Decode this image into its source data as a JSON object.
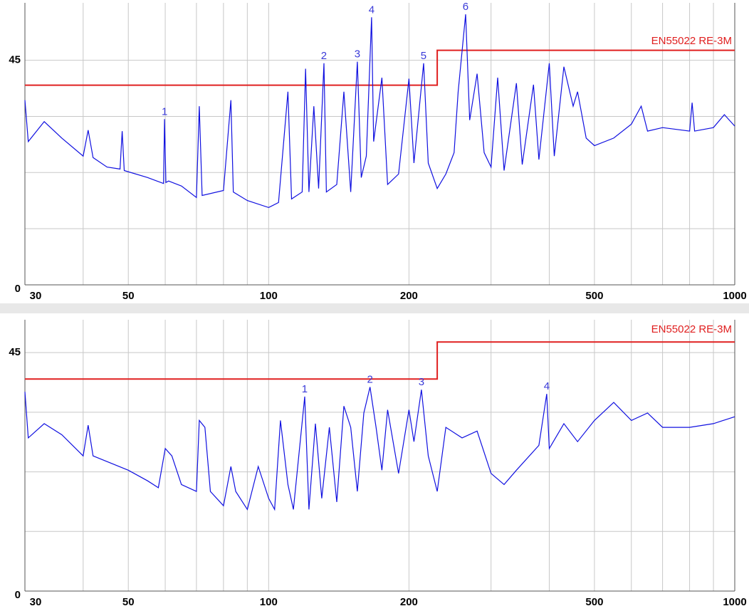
{
  "chart_data": [
    {
      "type": "line",
      "x_scale": "log",
      "xlim": [
        30,
        1000
      ],
      "ylim": [
        0,
        56.5
      ],
      "xticks": [
        30,
        50,
        100,
        200,
        500,
        1000
      ],
      "minor_xticks": [
        40,
        60,
        70,
        80,
        90,
        300,
        400,
        600,
        700,
        800,
        900
      ],
      "yticks": [
        0,
        45
      ],
      "minor_yticks": [
        11.25,
        22.5,
        33.75
      ],
      "grid": true,
      "series": [
        {
          "name": "EN55022 RE-3M",
          "color": "#e02020",
          "x": [
            30,
            230,
            230,
            1000
          ],
          "values": [
            40,
            40,
            47,
            47
          ]
        },
        {
          "color": "#1010e0",
          "x": [
            30,
            30.5,
            33,
            36,
            40,
            41,
            42,
            45,
            48,
            48.5,
            49,
            55,
            59.5,
            59.8,
            60.2,
            61,
            65,
            70,
            71,
            72,
            80,
            83,
            84,
            90,
            100,
            105,
            110,
            112,
            118,
            120,
            122,
            125,
            128,
            131.4,
            133,
            140,
            145,
            150,
            155,
            158,
            162,
            166.3,
            168,
            175,
            180,
            190,
            200,
            205,
            215,
            220,
            230,
            240,
            250,
            255,
            264.6,
            270,
            280,
            290,
            300,
            310,
            320,
            340,
            350,
            370,
            380,
            400,
            410,
            430,
            450,
            460,
            480,
            500,
            550,
            600,
            630,
            650,
            700,
            800,
            810,
            820,
            900,
            950,
            1000
          ],
          "values": [
            37,
            28.7,
            32.7,
            29.4,
            25.8,
            31,
            25.5,
            23.6,
            23.2,
            30.8,
            22.9,
            21.5,
            20.3,
            33.2,
            20.5,
            20.8,
            19.8,
            17.5,
            35.8,
            17.9,
            18.9,
            37,
            18.6,
            16.9,
            15.5,
            16.5,
            38.7,
            17.2,
            18.6,
            43.3,
            18.6,
            35.8,
            19.3,
            44.4,
            18.6,
            20.1,
            38.7,
            18.6,
            44.7,
            21.5,
            25.8,
            53.6,
            28.7,
            41.5,
            20.1,
            22.2,
            41.3,
            24.4,
            44.4,
            24.4,
            19.3,
            22.2,
            26.5,
            38.7,
            54.2,
            33,
            42.3,
            26.5,
            23.6,
            41.5,
            22.9,
            40.4,
            24.1,
            40.1,
            25.1,
            44.4,
            25.8,
            43.7,
            35.8,
            38.7,
            29.4,
            27.9,
            29.4,
            32.2,
            35.8,
            30.8,
            31.5,
            30.8,
            36.5,
            30.8,
            31.5,
            34.1,
            31.8
          ]
        }
      ],
      "markers": [
        {
          "label": "1",
          "x": 59.8,
          "value": 33.2
        },
        {
          "label": "2",
          "x": 131.4,
          "value": 44.4
        },
        {
          "label": "3",
          "x": 155,
          "value": 44.7
        },
        {
          "label": "4",
          "x": 166.3,
          "value": 53.6
        },
        {
          "label": "5",
          "x": 215,
          "value": 44.4
        },
        {
          "label": "6",
          "x": 264.6,
          "value": 54.2
        }
      ]
    },
    {
      "type": "line",
      "x_scale": "log",
      "xlim": [
        30,
        1000
      ],
      "ylim": [
        0,
        51.2
      ],
      "xticks": [
        30,
        50,
        100,
        200,
        500,
        1000
      ],
      "minor_xticks": [
        40,
        60,
        70,
        80,
        90,
        300,
        400,
        600,
        700,
        800,
        900
      ],
      "yticks": [
        0,
        45
      ],
      "minor_yticks": [
        11.25,
        22.5,
        33.75
      ],
      "grid": true,
      "series": [
        {
          "name": "EN55022 RE-3M",
          "color": "#e02020",
          "x": [
            30,
            230,
            230,
            1000
          ],
          "values": [
            40,
            40,
            47,
            47
          ]
        },
        {
          "color": "#1010e0",
          "x": [
            30,
            30.5,
            33,
            36,
            40,
            41,
            42,
            50,
            55,
            58,
            60,
            62,
            65,
            70,
            71,
            73,
            75,
            80,
            83,
            85,
            90,
            95,
            100,
            103,
            106,
            110,
            113,
            119.5,
            122,
            126,
            130,
            135,
            140,
            145,
            150,
            155,
            160,
            165,
            170,
            175,
            180,
            190,
            200,
            205,
            212.7,
            220,
            230,
            240,
            260,
            280,
            300,
            320,
            340,
            380,
            395,
            400,
            430,
            460,
            500,
            550,
            600,
            650,
            700,
            800,
            900,
            1000
          ],
          "values": [
            37.6,
            28.9,
            31.6,
            29.5,
            25.5,
            31.3,
            25.5,
            22.8,
            20.8,
            19.5,
            26.9,
            25.5,
            20.1,
            18.8,
            32.2,
            30.9,
            18.8,
            16.1,
            23.5,
            18.8,
            15.4,
            23.5,
            17.5,
            15.4,
            32.2,
            20.1,
            15.4,
            36.7,
            15.4,
            31.6,
            17.5,
            30.9,
            16.8,
            34.9,
            30.9,
            18.8,
            33.6,
            38.5,
            30.9,
            22.8,
            34.2,
            22.2,
            34.2,
            28.2,
            38,
            25.5,
            18.8,
            30.9,
            28.9,
            30.2,
            22.2,
            20.1,
            22.8,
            27.5,
            37.2,
            26.9,
            31.6,
            28.2,
            32.2,
            35.6,
            32.2,
            33.6,
            30.9,
            30.9,
            31.6,
            32.9
          ]
        }
      ],
      "markers": [
        {
          "label": "1",
          "x": 119.5,
          "value": 36.7
        },
        {
          "label": "2",
          "x": 165,
          "value": 38.5
        },
        {
          "label": "3",
          "x": 212.7,
          "value": 38
        },
        {
          "label": "4",
          "x": 395,
          "value": 37.2
        }
      ]
    }
  ]
}
